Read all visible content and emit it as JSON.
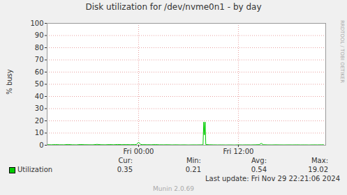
{
  "chart_data": {
    "type": "line",
    "title": "Disk utilization for /dev/nvme0n1 - by day",
    "y_label": "% busy",
    "watermark": "RRDTOOL / TOBI OETIKER",
    "last_update": "Last update: Fri Nov 29 22:21:06 2024",
    "footer": "Munin 2.0.69",
    "stat_labels": [
      "Cur:",
      "Min:",
      "Avg:",
      "Max:"
    ],
    "x": [
      -11,
      -10.5,
      -10,
      -9.5,
      -9,
      -8.5,
      -8,
      -7.5,
      -7,
      -6.5,
      -6,
      -5.5,
      -5,
      -4.5,
      -4,
      -3.5,
      -3,
      -2.5,
      -2,
      -1.5,
      -1,
      -0.5,
      -0.25,
      0,
      0.25,
      0.5,
      1,
      1.5,
      2,
      2.5,
      3,
      3.5,
      4,
      4.5,
      5,
      5.5,
      6,
      6.5,
      7,
      7.5,
      7.75,
      7.83,
      7.92,
      8.0,
      8.08,
      8.5,
      9,
      9.5,
      10,
      10.5,
      11,
      11.5,
      12,
      12.5,
      13,
      13.5,
      14,
      14.5,
      14.75,
      15,
      15.5,
      16,
      16.5,
      17,
      17.5,
      18,
      18.5,
      19,
      19.5,
      20,
      20.5,
      21,
      21.5,
      22,
      22.25
    ],
    "series": [
      {
        "name": "Utilization",
        "color": "#00cc00",
        "values": [
          0.45,
          0.38,
          0.52,
          0.41,
          0.36,
          0.62,
          0.4,
          0.33,
          0.58,
          0.44,
          0.39,
          0.35,
          0.7,
          0.42,
          0.37,
          0.55,
          0.41,
          0.6,
          0.48,
          0.52,
          0.45,
          0.5,
          0.55,
          2.5,
          0.6,
          0.48,
          0.44,
          0.4,
          0.52,
          0.38,
          0.35,
          0.41,
          0.3,
          0.36,
          0.28,
          0.33,
          0.25,
          0.31,
          0.29,
          0.34,
          0.38,
          19.0,
          8.5,
          19.02,
          0.6,
          0.4,
          0.32,
          0.27,
          0.3,
          0.24,
          0.29,
          0.21,
          0.31,
          0.26,
          0.33,
          0.28,
          0.36,
          0.45,
          1.5,
          0.42,
          0.3,
          0.27,
          0.34,
          0.29,
          0.26,
          0.31,
          0.28,
          0.33,
          0.27,
          0.3,
          0.25,
          0.32,
          0.29,
          0.34,
          0.35
        ],
        "cur": 0.35,
        "min": 0.21,
        "avg": 0.54,
        "max": 19.02
      }
    ],
    "xlim": [
      -11,
      22.5
    ],
    "xticks": [
      {
        "value": 0,
        "label": "Fri 00:00"
      },
      {
        "value": 12,
        "label": "Fri 12:00"
      }
    ],
    "ylim": [
      0,
      100
    ],
    "yticks": [
      0,
      10,
      20,
      30,
      40,
      50,
      60,
      70,
      80,
      90,
      100
    ],
    "grid": true
  }
}
